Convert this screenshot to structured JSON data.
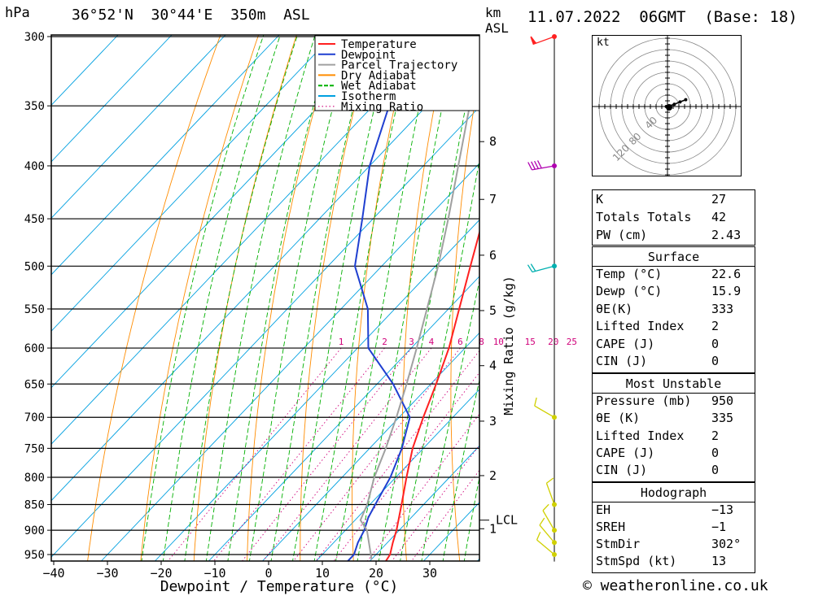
{
  "header": {
    "pressure_unit": "hPa",
    "location": "36°52'N  30°44'E  350m  ASL",
    "km_label": "km",
    "asl_label": "ASL",
    "datetime": "11.07.2022  06GMT  (Base: 18)"
  },
  "legend": [
    {
      "label": "Temperature",
      "color": "#ff2020"
    },
    {
      "label": "Dewpoint",
      "color": "#1f3fd0"
    },
    {
      "label": "Parcel Trajectory",
      "color": "#a0a0a0"
    },
    {
      "label": "Dry Adiabat",
      "color": "#ff8c00"
    },
    {
      "label": "Wet Adiabat",
      "color": "#00b000"
    },
    {
      "label": "Isotherm",
      "color": "#00a0e0"
    },
    {
      "label": "Mixing Ratio",
      "color": "#d0007a"
    }
  ],
  "axes": {
    "xlabel": "Dewpoint / Temperature (°C)",
    "mixing_label": "Mixing Ratio (g/kg)",
    "lcl_label": "LCL"
  },
  "footer": {
    "credit": "© weatheronline.co.uk"
  },
  "hodograph": {
    "unit": "kt",
    "ring_labels": [
      "40",
      "80",
      "120"
    ]
  },
  "indices": [
    {
      "key": "K",
      "value": "27"
    },
    {
      "key": "Totals Totals",
      "value": "42"
    },
    {
      "key": "PW (cm)",
      "value": "2.43"
    }
  ],
  "surface": {
    "title": "Surface",
    "rows": [
      {
        "key": "Temp (°C)",
        "value": "22.6"
      },
      {
        "key": "Dewp (°C)",
        "value": "15.9"
      },
      {
        "key": "θE(K)",
        "value": "333"
      },
      {
        "key": "Lifted Index",
        "value": "2"
      },
      {
        "key": "CAPE (J)",
        "value": "0"
      },
      {
        "key": "CIN (J)",
        "value": "0"
      }
    ]
  },
  "most_unstable": {
    "title": "Most Unstable",
    "rows": [
      {
        "key": "Pressure (mb)",
        "value": "950"
      },
      {
        "key": "θE (K)",
        "value": "335"
      },
      {
        "key": "Lifted Index",
        "value": "2"
      },
      {
        "key": "CAPE (J)",
        "value": "0"
      },
      {
        "key": "CIN (J)",
        "value": "0"
      }
    ]
  },
  "hodo_stats": {
    "title": "Hodograph",
    "rows": [
      {
        "key": "EH",
        "value": "−13"
      },
      {
        "key": "SREH",
        "value": "−1"
      },
      {
        "key": "StmDir",
        "value": "302°"
      },
      {
        "key": "StmSpd (kt)",
        "value": "13"
      }
    ]
  },
  "chart_data": {
    "type": "line",
    "title": "36°52'N 30°44'E 350m ASL  11.07.2022 06GMT (Base: 18)",
    "xlabel": "Dewpoint / Temperature (°C)",
    "ylabel": "hPa",
    "x_ticks": [
      -40,
      -30,
      -20,
      -10,
      0,
      10,
      20,
      30
    ],
    "pressure_levels": [
      300,
      350,
      400,
      450,
      500,
      550,
      600,
      650,
      700,
      750,
      800,
      850,
      900,
      950
    ],
    "km_ticks": [
      {
        "km": 1,
        "p": 897
      },
      {
        "km": 2,
        "p": 797
      },
      {
        "km": 3,
        "p": 706
      },
      {
        "km": 4,
        "p": 624
      },
      {
        "km": 5,
        "p": 552
      },
      {
        "km": 6,
        "p": 488
      },
      {
        "km": 7,
        "p": 431
      },
      {
        "km": 8,
        "p": 379
      }
    ],
    "lcl_pressure": 880,
    "mixing_ratio_labels": [
      1,
      2,
      3,
      4,
      6,
      8,
      10,
      15,
      20,
      25
    ],
    "series": [
      {
        "name": "Temperature",
        "color": "#ff2020",
        "points": [
          [
            965,
            23
          ],
          [
            950,
            22.6
          ],
          [
            925,
            21
          ],
          [
            900,
            19.5
          ],
          [
            850,
            15.9
          ],
          [
            800,
            12
          ],
          [
            750,
            8
          ],
          [
            700,
            4.5
          ],
          [
            650,
            1
          ],
          [
            600,
            -3
          ],
          [
            550,
            -8
          ],
          [
            500,
            -13.5
          ],
          [
            450,
            -19.5
          ],
          [
            400,
            -26
          ],
          [
            360,
            -31.5
          ]
        ]
      },
      {
        "name": "Dewpoint",
        "color": "#1f3fd0",
        "points": [
          [
            965,
            15.9
          ],
          [
            950,
            15.9
          ],
          [
            925,
            14.5
          ],
          [
            900,
            13.5
          ],
          [
            875,
            12
          ],
          [
            850,
            11
          ],
          [
            800,
            9
          ],
          [
            750,
            6
          ],
          [
            700,
            2
          ],
          [
            650,
            -7
          ],
          [
            600,
            -18
          ],
          [
            550,
            -25
          ],
          [
            500,
            -35
          ],
          [
            450,
            -42
          ],
          [
            400,
            -50
          ],
          [
            350,
            -57
          ],
          [
            300,
            -64
          ]
        ]
      },
      {
        "name": "Parcel Trajectory",
        "color": "#a0a0a0",
        "points": [
          [
            960,
            20
          ],
          [
            900,
            14
          ],
          [
            880,
            11
          ],
          [
            850,
            9.5
          ],
          [
            800,
            6
          ],
          [
            750,
            3
          ],
          [
            700,
            -0.5
          ],
          [
            650,
            -4.5
          ],
          [
            600,
            -9
          ],
          [
            550,
            -14
          ],
          [
            500,
            -19.5
          ],
          [
            450,
            -26
          ],
          [
            400,
            -33.5
          ],
          [
            350,
            -42
          ],
          [
            300,
            -52
          ]
        ]
      }
    ],
    "wind_barbs": [
      {
        "p": 300,
        "dir": 250,
        "speed_kt": 60
      },
      {
        "p": 400,
        "dir": 260,
        "speed_kt": 40
      },
      {
        "p": 500,
        "dir": 255,
        "speed_kt": 20
      },
      {
        "p": 700,
        "dir": 300,
        "speed_kt": 10
      },
      {
        "p": 850,
        "dir": 340,
        "speed_kt": 10
      },
      {
        "p": 900,
        "dir": 330,
        "speed_kt": 10
      },
      {
        "p": 925,
        "dir": 320,
        "speed_kt": 10
      },
      {
        "p": 950,
        "dir": 310,
        "speed_kt": 10
      }
    ],
    "hodograph_points": [
      [
        0,
        0
      ],
      [
        -2,
        0
      ],
      [
        3,
        1
      ],
      [
        12,
        4
      ],
      [
        22,
        8
      ],
      [
        32,
        12
      ]
    ]
  }
}
